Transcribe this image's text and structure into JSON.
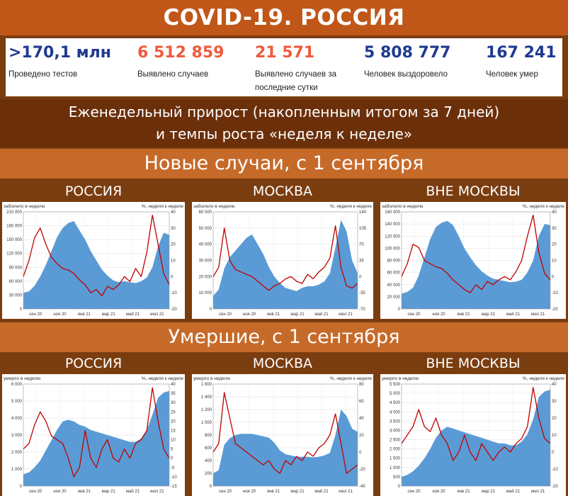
{
  "header": {
    "title": "COVID-19. РОССИЯ",
    "subtitle_line1": "Еженедельный прирост (накопленным итогом за 7 дней)",
    "subtitle_line2": "и темпы роста «неделя к неделе»"
  },
  "stats": [
    {
      "value": ">170,1 млн",
      "label": "Проведено тестов",
      "color": "#1f3a8f"
    },
    {
      "value": "6 512 859",
      "label": "Выявлено случаев",
      "color": "#f05a3c"
    },
    {
      "value": "21 571",
      "label": "Выявлено случаев за последние сутки",
      "color": "#f05a3c"
    },
    {
      "value": "5 808 777",
      "label": "Человек выздоровело",
      "color": "#1f3a8f"
    },
    {
      "value": "167 241",
      "label": "Человек умер",
      "color": "#1f3a8f"
    }
  ],
  "sections": {
    "cases_title": "Новые случаи, с 1 сентября",
    "deaths_title": "Умершие, с 1 сентября"
  },
  "colors": {
    "area": "#5b9bd5",
    "line": "#c00000"
  },
  "chart_data": [
    {
      "type": "area",
      "panel": "РОССИЯ",
      "left_axis_label": "заболело в неделю",
      "right_axis_label": "%, неделя к неделе",
      "x_ticks": [
        "сен 20",
        "ноя 20",
        "янв 21",
        "мар 21",
        "май 21",
        "июл 21"
      ],
      "y_left": [
        0,
        30000,
        60000,
        90000,
        120000,
        150000,
        180000,
        210000
      ],
      "y_left_labels": [
        "0",
        "30 000",
        "60 000",
        "90 000",
        "120 000",
        "150 000",
        "180 000",
        "210 000"
      ],
      "y_right": [
        -20,
        -10,
        0,
        10,
        20,
        30,
        40
      ],
      "series": [
        {
          "kind": "area",
          "axis": "left",
          "values": [
            35000,
            38000,
            50000,
            70000,
            95000,
            125000,
            155000,
            175000,
            186000,
            190000,
            170000,
            150000,
            125000,
            105000,
            85000,
            72000,
            62000,
            58000,
            60000,
            58000,
            56000,
            60000,
            68000,
            90000,
            135000,
            165000,
            160000
          ]
        },
        {
          "kind": "line",
          "axis": "right",
          "values": [
            0,
            10,
            24,
            30,
            20,
            12,
            8,
            5,
            4,
            2,
            -2,
            -5,
            -10,
            -8,
            -12,
            -6,
            -8,
            -5,
            0,
            -3,
            5,
            0,
            15,
            38,
            20,
            2,
            -5
          ]
        }
      ]
    },
    {
      "type": "area",
      "panel": "МОСКВА",
      "left_axis_label": "заболело в неделю",
      "right_axis_label": "%, неделя к неделе",
      "x_ticks": [
        "сен 20",
        "ноя 20",
        "янв 21",
        "мар 21",
        "май 21",
        "июл 21"
      ],
      "y_left": [
        0,
        10000,
        20000,
        30000,
        40000,
        50000,
        60000
      ],
      "y_left_labels": [
        "0",
        "10 000",
        "20 000",
        "30 000",
        "40 000",
        "50 000",
        "60 000"
      ],
      "y_right": [
        -70,
        -35,
        0,
        35,
        70,
        105,
        140
      ],
      "series": [
        {
          "kind": "area",
          "axis": "left",
          "values": [
            8000,
            12000,
            25000,
            32000,
            36000,
            40000,
            44000,
            46000,
            40000,
            34000,
            26000,
            20000,
            16000,
            13000,
            12000,
            11000,
            13000,
            14000,
            14000,
            15000,
            17000,
            22000,
            38000,
            55000,
            48000,
            30000,
            22000
          ]
        },
        {
          "kind": "line",
          "axis": "right",
          "values": [
            0,
            20,
            105,
            35,
            15,
            10,
            5,
            0,
            -10,
            -20,
            -30,
            -20,
            -15,
            -5,
            0,
            -10,
            -15,
            5,
            -5,
            10,
            20,
            40,
            110,
            20,
            -20,
            -25,
            -15
          ]
        }
      ]
    },
    {
      "type": "area",
      "panel": "ВНЕ МОСКВЫ",
      "left_axis_label": "заболело в неделю",
      "right_axis_label": "%, неделя к неделе",
      "x_ticks": [
        "сен 20",
        "ноя 20",
        "янв 21",
        "мар 21",
        "май 21",
        "июл 21"
      ],
      "y_left": [
        0,
        20000,
        40000,
        60000,
        80000,
        100000,
        120000,
        140000,
        160000
      ],
      "y_left_labels": [
        "0",
        "20 000",
        "40 000",
        "60 000",
        "80 000",
        "100 000",
        "120 000",
        "140 000",
        "160 000"
      ],
      "y_right": [
        -20,
        -10,
        0,
        10,
        20,
        30,
        40
      ],
      "series": [
        {
          "kind": "area",
          "axis": "left",
          "values": [
            25000,
            28000,
            35000,
            55000,
            85000,
            115000,
            135000,
            142000,
            145000,
            138000,
            120000,
            100000,
            85000,
            72000,
            62000,
            55000,
            50000,
            48000,
            46000,
            44000,
            45000,
            48000,
            60000,
            80000,
            120000,
            140000,
            138000
          ]
        },
        {
          "kind": "line",
          "axis": "right",
          "values": [
            0,
            8,
            20,
            18,
            10,
            8,
            6,
            5,
            2,
            -2,
            -5,
            -8,
            -10,
            -5,
            -8,
            -3,
            -5,
            -2,
            0,
            -2,
            3,
            10,
            25,
            38,
            15,
            2,
            -2
          ]
        }
      ]
    },
    {
      "type": "area",
      "panel": "РОССИЯ",
      "left_axis_label": "умерло в неделю",
      "right_axis_label": "%, неделя к неделе",
      "x_ticks": [
        "сен 20",
        "ноя 20",
        "янв 21",
        "мар 21",
        "май 21",
        "июл 21"
      ],
      "y_left": [
        0,
        1000,
        2000,
        3000,
        4000,
        5000,
        6000
      ],
      "y_left_labels": [
        "0",
        "1 000",
        "2 000",
        "3 000",
        "4 000",
        "5 000",
        "6 000"
      ],
      "y_right": [
        -15,
        -10,
        -5,
        0,
        5,
        10,
        15,
        20,
        25,
        30,
        35,
        40
      ],
      "series": [
        {
          "kind": "area",
          "axis": "left",
          "values": [
            700,
            800,
            1100,
            1500,
            2100,
            2700,
            3300,
            3800,
            3900,
            3800,
            3600,
            3500,
            3300,
            3200,
            3100,
            3000,
            2900,
            2800,
            2700,
            2600,
            2600,
            2800,
            3300,
            4200,
            5200,
            5500,
            5600
          ]
        },
        {
          "kind": "line",
          "axis": "right",
          "values": [
            5,
            8,
            18,
            25,
            20,
            12,
            10,
            8,
            0,
            -10,
            -5,
            15,
            0,
            -5,
            5,
            10,
            0,
            -2,
            5,
            0,
            8,
            10,
            15,
            38,
            20,
            5,
            0
          ]
        }
      ]
    },
    {
      "type": "area",
      "panel": "МОСКВА",
      "left_axis_label": "умерло в неделю",
      "right_axis_label": "%, неделя к неделе",
      "x_ticks": [
        "сен 20",
        "ноя 20",
        "янв 21",
        "мар 21",
        "май 21",
        "июл 21"
      ],
      "y_left": [
        0,
        200,
        400,
        600,
        800,
        1000,
        1200,
        1400,
        1600
      ],
      "y_left_labels": [
        "0",
        "200",
        "400",
        "600",
        "800",
        "1 000",
        "1 200",
        "1 400",
        "1 600"
      ],
      "y_right": [
        -40,
        -20,
        0,
        20,
        40,
        60,
        80
      ],
      "series": [
        {
          "kind": "area",
          "axis": "left",
          "values": [
            200,
            250,
            650,
            750,
            800,
            820,
            820,
            820,
            800,
            780,
            760,
            680,
            560,
            500,
            480,
            460,
            460,
            460,
            450,
            460,
            480,
            520,
            800,
            1200,
            1100,
            900,
            850
          ]
        },
        {
          "kind": "line",
          "axis": "right",
          "values": [
            0,
            10,
            70,
            40,
            10,
            5,
            0,
            -5,
            -10,
            -15,
            -10,
            -20,
            -25,
            -10,
            -15,
            -5,
            -10,
            0,
            -5,
            5,
            10,
            20,
            45,
            10,
            -25,
            -20,
            -15
          ]
        }
      ]
    },
    {
      "type": "area",
      "panel": "ВНЕ МОСКВЫ",
      "left_axis_label": "умерло в неделю",
      "right_axis_label": "%, неделя к неделе",
      "x_ticks": [
        "сен 20",
        "ноя 20",
        "янв 21",
        "мар 21",
        "май 21",
        "июл 21"
      ],
      "y_left": [
        0,
        500,
        1000,
        1500,
        2000,
        2500,
        3000,
        3500,
        4000,
        4500,
        5000,
        5500
      ],
      "y_left_labels": [
        "0",
        "500",
        "1 000",
        "1 500",
        "2 000",
        "2 500",
        "3 000",
        "3 500",
        "4 000",
        "4 500",
        "5 000",
        "5 500"
      ],
      "y_right": [
        -20,
        -10,
        0,
        10,
        20,
        30,
        40
      ],
      "series": [
        {
          "kind": "area",
          "axis": "left",
          "values": [
            500,
            600,
            800,
            1100,
            1500,
            2000,
            2600,
            3000,
            3200,
            3100,
            3000,
            2900,
            2800,
            2700,
            2600,
            2500,
            2400,
            2300,
            2300,
            2200,
            2200,
            2400,
            2800,
            3600,
            4800,
            5100,
            5200
          ]
        },
        {
          "kind": "line",
          "axis": "right",
          "values": [
            5,
            10,
            15,
            25,
            15,
            12,
            20,
            10,
            5,
            -5,
            0,
            10,
            0,
            -5,
            5,
            0,
            -5,
            0,
            3,
            0,
            5,
            8,
            15,
            38,
            20,
            8,
            5
          ]
        }
      ]
    }
  ]
}
